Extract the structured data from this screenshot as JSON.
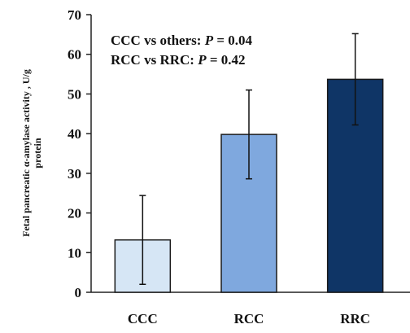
{
  "chart_data": {
    "type": "bar",
    "title": "",
    "xlabel": "",
    "ylabel_line1": "Fetal pancreatic α-amylase activity , U/g",
    "ylabel_line2": "protein",
    "ylim": [
      0,
      70
    ],
    "yticks": [
      "0",
      "10",
      "20",
      "30",
      "40",
      "50",
      "60",
      "70"
    ],
    "categories": [
      "CCC",
      "RCC",
      "RRC"
    ],
    "values": [
      13.2,
      39.8,
      53.7
    ],
    "errors": [
      11.2,
      11.2,
      11.5
    ],
    "colors": [
      "#d6e6f5",
      "#7fa8de",
      "#0f3566"
    ],
    "grid": false,
    "annotations": [
      {
        "prefix": "CCC vs others: ",
        "italic": "P",
        "suffix": " = 0.04"
      },
      {
        "prefix": "RCC vs RRC: ",
        "italic": "P",
        "suffix": " = 0.42"
      }
    ]
  }
}
